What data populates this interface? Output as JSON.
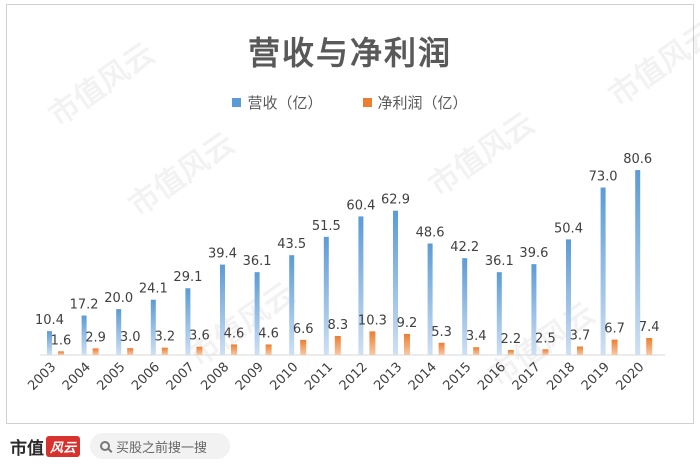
{
  "chart_data": {
    "type": "bar",
    "title": "营收与净利润",
    "categories": [
      "2003",
      "2004",
      "2005",
      "2006",
      "2007",
      "2008",
      "2009",
      "2010",
      "2011",
      "2012",
      "2013",
      "2014",
      "2015",
      "2016",
      "2017",
      "2018",
      "2019",
      "2020"
    ],
    "series": [
      {
        "name": "营收（亿）",
        "color": "#5b9bd5",
        "values": [
          10.4,
          17.2,
          20.0,
          24.1,
          29.1,
          39.4,
          36.1,
          43.5,
          51.5,
          60.4,
          62.9,
          48.6,
          42.2,
          36.1,
          39.6,
          50.4,
          73.0,
          80.6
        ]
      },
      {
        "name": "净利润（亿）",
        "color": "#ed7d31",
        "values": [
          1.6,
          2.9,
          3.0,
          3.2,
          3.6,
          4.6,
          4.6,
          6.6,
          8.3,
          10.3,
          9.2,
          5.3,
          3.4,
          2.2,
          2.5,
          3.7,
          6.7,
          7.4
        ]
      }
    ],
    "ylim": [
      0,
      85
    ],
    "legend": "top",
    "grid": false
  },
  "watermark": "市值风云",
  "footer": {
    "brand_text": "市值",
    "brand_mark": "风云",
    "search_placeholder": "买股之前搜一搜",
    "search_icon": "search-icon"
  }
}
